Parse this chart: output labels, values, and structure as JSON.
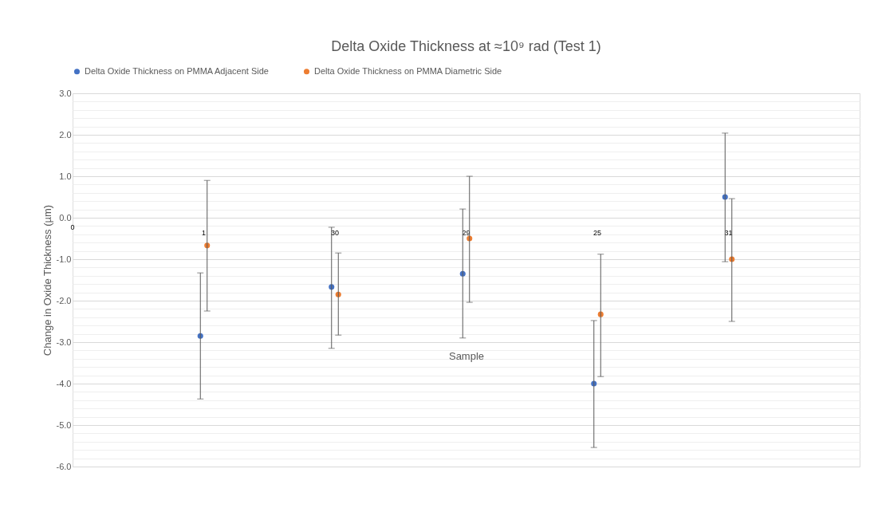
{
  "chart_data": {
    "type": "scatter",
    "title": "Delta Oxide Thickness at ≈10⁹ rad (Test 1)",
    "xlabel": "Sample",
    "ylabel": "Change in Oxide Thickness (µm)",
    "categories": [
      "1",
      "30",
      "29",
      "25",
      "31"
    ],
    "series": [
      {
        "name": "Delta Oxide Thickness on PMMA Adjacent Side",
        "color": "#4472c4",
        "values": [
          -2.85,
          -1.67,
          -1.35,
          -4.0,
          0.5
        ],
        "errors": [
          [
            -4.37,
            -1.33
          ],
          [
            -3.15,
            -0.23
          ],
          [
            -2.9,
            0.21
          ],
          [
            -5.54,
            -2.48
          ],
          [
            -1.06,
            2.04
          ]
        ]
      },
      {
        "name": "Delta Oxide Thickness on PMMA Diametric Side",
        "color": "#ed7d31",
        "values": [
          -0.67,
          -1.85,
          -0.5,
          -2.33,
          -1.0
        ],
        "errors": [
          [
            -2.25,
            0.9
          ],
          [
            -2.83,
            -0.85
          ],
          [
            -2.04,
            1.0
          ],
          [
            -3.83,
            -0.88
          ],
          [
            -2.5,
            0.46
          ]
        ]
      }
    ],
    "ylim": [
      -6,
      3
    ],
    "yticks": [
      {
        "value": -6,
        "label": "-6.0"
      },
      {
        "value": -5.8,
        "label": null
      },
      {
        "value": -5.6,
        "label": null
      },
      {
        "value": -5.4,
        "label": null
      },
      {
        "value": -5.2,
        "label": null
      },
      {
        "value": -5,
        "label": "-5.0"
      },
      {
        "value": -4.8,
        "label": null
      },
      {
        "value": -4.6,
        "label": null
      },
      {
        "value": -4.4,
        "label": null
      },
      {
        "value": -4.2,
        "label": null
      },
      {
        "value": -4,
        "label": "-4.0"
      },
      {
        "value": -3.8,
        "label": null
      },
      {
        "value": -3.6,
        "label": null
      },
      {
        "value": -3.4,
        "label": null
      },
      {
        "value": -3.2,
        "label": null
      },
      {
        "value": -3,
        "label": "-3.0"
      },
      {
        "value": -2.8,
        "label": null
      },
      {
        "value": -2.6,
        "label": null
      },
      {
        "value": -2.4,
        "label": null
      },
      {
        "value": -2.2,
        "label": null
      },
      {
        "value": -2,
        "label": "-2.0"
      },
      {
        "value": -1.8,
        "label": null
      },
      {
        "value": -1.6,
        "label": null
      },
      {
        "value": -1.4,
        "label": null
      },
      {
        "value": -1.2,
        "label": null
      },
      {
        "value": -1,
        "label": "-1.0"
      },
      {
        "value": -0.8,
        "label": null
      },
      {
        "value": -0.6,
        "label": null
      },
      {
        "value": -0.4,
        "label": null
      },
      {
        "value": -0.2,
        "label": null
      },
      {
        "value": 0,
        "label": "0.0"
      },
      {
        "value": 0.2,
        "label": null
      },
      {
        "value": 0.4,
        "label": null
      },
      {
        "value": 0.6,
        "label": null
      },
      {
        "value": 0.8,
        "label": null
      },
      {
        "value": 1,
        "label": "1.0"
      },
      {
        "value": 1.2,
        "label": null
      },
      {
        "value": 1.4,
        "label": null
      },
      {
        "value": 1.6,
        "label": null
      },
      {
        "value": 1.8,
        "label": null
      },
      {
        "value": 2,
        "label": "2.0"
      },
      {
        "value": 2.2,
        "label": null
      },
      {
        "value": 2.4,
        "label": null
      },
      {
        "value": 2.6,
        "label": null
      },
      {
        "value": 2.8,
        "label": null
      },
      {
        "value": 3,
        "label": "3.0"
      }
    ],
    "annotations": [
      "0"
    ],
    "grid": "y",
    "legend": "top",
    "marker": "circle"
  }
}
